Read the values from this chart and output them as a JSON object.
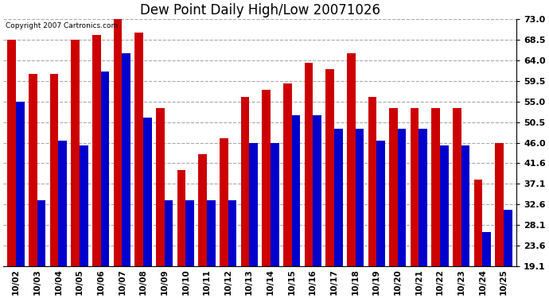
{
  "title": "Dew Point Daily High/Low 20071026",
  "copyright": "Copyright 2007 Cartronics.com",
  "categories": [
    "10/02",
    "10/03",
    "10/04",
    "10/05",
    "10/06",
    "10/07",
    "10/08",
    "10/09",
    "10/10",
    "10/11",
    "10/12",
    "10/13",
    "10/14",
    "10/15",
    "10/16",
    "10/17",
    "10/18",
    "10/19",
    "10/20",
    "10/21",
    "10/22",
    "10/23",
    "10/24",
    "10/25"
  ],
  "high_values": [
    68.5,
    61.0,
    61.0,
    68.5,
    69.5,
    73.0,
    70.0,
    53.5,
    40.0,
    43.5,
    47.0,
    56.0,
    57.5,
    59.0,
    63.5,
    62.0,
    65.5,
    56.0,
    53.5,
    53.5,
    53.5,
    53.5,
    38.0,
    46.0
  ],
  "low_values": [
    55.0,
    33.5,
    46.5,
    45.5,
    61.5,
    65.5,
    51.5,
    33.5,
    33.5,
    33.5,
    33.5,
    46.0,
    46.0,
    52.0,
    52.0,
    49.0,
    49.0,
    46.5,
    49.0,
    49.0,
    45.5,
    45.5,
    26.5,
    31.5
  ],
  "bar_color_high": "#cc0000",
  "bar_color_low": "#0000cc",
  "ylim_min": 19.1,
  "ylim_max": 73.0,
  "yticks": [
    19.1,
    23.6,
    28.1,
    32.6,
    37.1,
    41.6,
    46.0,
    50.5,
    55.0,
    59.5,
    64.0,
    68.5,
    73.0
  ],
  "background_color": "#ffffff",
  "grid_color": "#aaaaaa",
  "title_fontsize": 12,
  "bar_width": 0.4,
  "figwidth": 6.9,
  "figheight": 3.75,
  "dpi": 100
}
